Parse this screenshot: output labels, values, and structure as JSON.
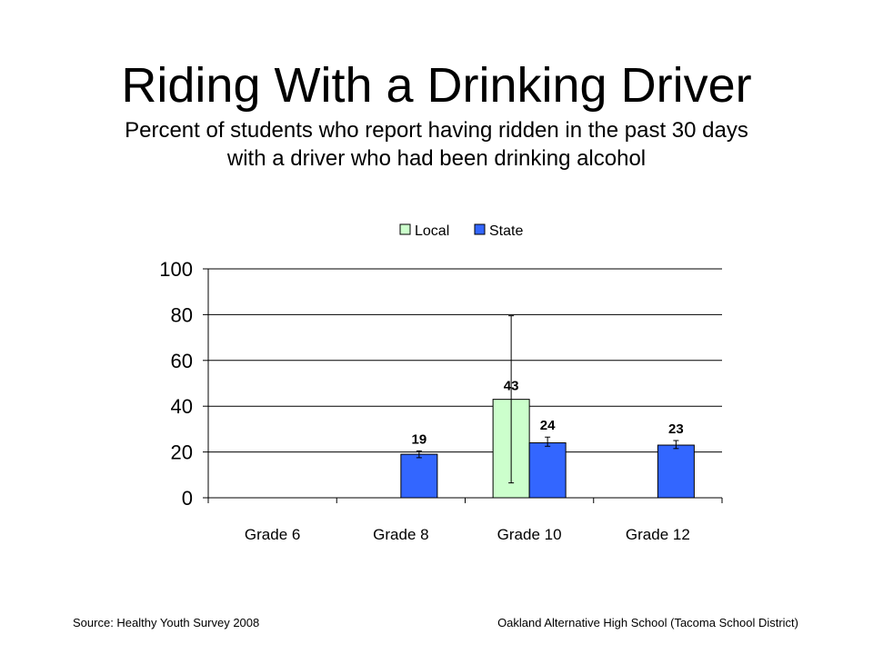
{
  "slide": {
    "title": "Riding With a Drinking Driver",
    "subtitle_line1": "Percent of students who report having ridden in the past 30 days",
    "subtitle_line2": "with a driver who had been drinking alcohol",
    "source": "Source: Healthy Youth Survey 2008",
    "school": "Oakland Alternative High School (Tacoma School District)"
  },
  "chart_data": {
    "type": "bar",
    "categories": [
      "Grade 6",
      "Grade 8",
      "Grade 10",
      "Grade 12"
    ],
    "series": [
      {
        "name": "Local",
        "color": "#ccffcc",
        "values": [
          null,
          null,
          43,
          null
        ],
        "labels": [
          "",
          "",
          "43",
          ""
        ],
        "error_low": [
          null,
          null,
          6.5,
          null
        ],
        "error_high": [
          null,
          null,
          79.5,
          null
        ]
      },
      {
        "name": "State",
        "color": "#3366ff",
        "values": [
          null,
          19,
          24,
          23
        ],
        "labels": [
          "",
          "19",
          "24",
          "23"
        ],
        "error_low": [
          null,
          17.5,
          22.5,
          21.5
        ],
        "error_high": [
          null,
          20.5,
          26.5,
          25
        ]
      }
    ],
    "ylim": [
      0,
      100
    ],
    "yticks": [
      "0",
      "20",
      "40",
      "60",
      "80",
      "100"
    ],
    "grid": true,
    "legend_position": "top"
  }
}
